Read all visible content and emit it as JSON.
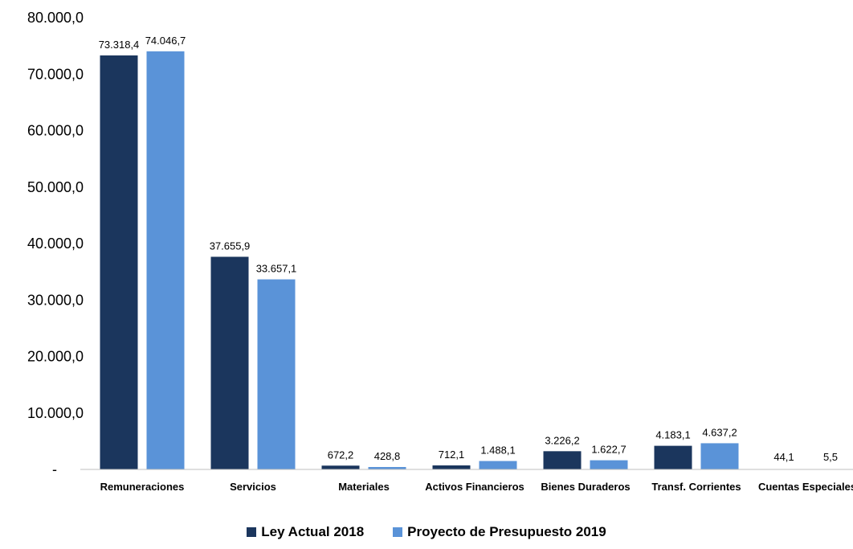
{
  "chart_data": {
    "type": "bar",
    "categories": [
      "Remuneraciones",
      "Servicios",
      "Materiales",
      "Activos Financieros",
      "Bienes Duraderos",
      "Transf. Corrientes",
      "Cuentas Especiales"
    ],
    "series": [
      {
        "name": "Ley Actual 2018",
        "color": "#1b365d",
        "values": [
          73318.4,
          37655.9,
          672.2,
          712.1,
          3226.2,
          4183.1,
          44.1
        ],
        "labels": [
          "73.318,4",
          "37.655,9",
          "672,2",
          "712,1",
          "3.226,2",
          "4.183,1",
          "44,1"
        ]
      },
      {
        "name": "Proyecto de Presupuesto 2019",
        "color": "#5a93d8",
        "values": [
          74046.7,
          33657.1,
          428.8,
          1488.1,
          1622.7,
          4637.2,
          5.5
        ],
        "labels": [
          "74.046,7",
          "33.657,1",
          "428,8",
          "1.488,1",
          "1.622,7",
          "4.637,2",
          "5,5"
        ]
      }
    ],
    "ylim": [
      0,
      80000
    ],
    "yticks": [
      0,
      10000,
      20000,
      30000,
      40000,
      50000,
      60000,
      70000,
      80000
    ],
    "ytick_labels": [
      "-",
      "10.000,0",
      "20.000,0",
      "30.000,0",
      "40.000,0",
      "50.000,0",
      "60.000,0",
      "70.000,0",
      "80.000,0"
    ],
    "grid": false,
    "legend_position": "bottom"
  },
  "legend": {
    "item1": "Ley Actual 2018",
    "item2": "Proyecto de Presupuesto 2019"
  }
}
